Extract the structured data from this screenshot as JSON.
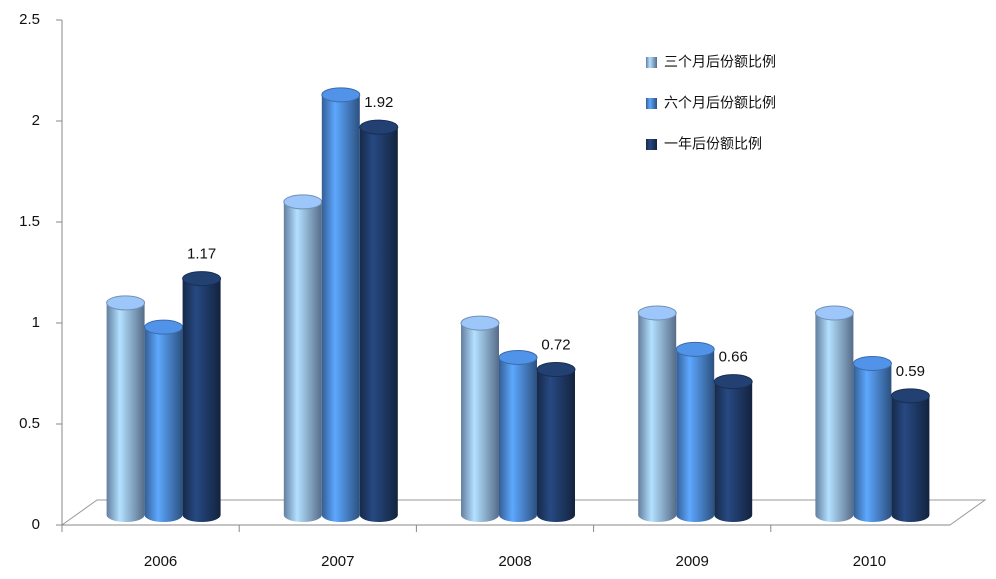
{
  "chart_data": {
    "type": "bar3d",
    "categories": [
      "2006",
      "2007",
      "2008",
      "2009",
      "2010"
    ],
    "series": [
      {
        "name": "三个月后份额比例",
        "color": "#8fb4e3",
        "values": [
          1.05,
          1.55,
          0.95,
          1.0,
          1.0
        ]
      },
      {
        "name": "六个月后份额比例",
        "color": "#4a86d4",
        "values": [
          0.93,
          2.08,
          0.78,
          0.82,
          0.75
        ]
      },
      {
        "name": "一年后份额比例",
        "color": "#1f3a68",
        "values": [
          1.17,
          1.92,
          0.72,
          0.66,
          0.59
        ],
        "show_labels": true
      }
    ],
    "ylim": [
      0,
      2.5
    ],
    "yticks": [
      0,
      0.5,
      1,
      1.5,
      2,
      2.5
    ],
    "grid": false,
    "legend": "upper right"
  }
}
